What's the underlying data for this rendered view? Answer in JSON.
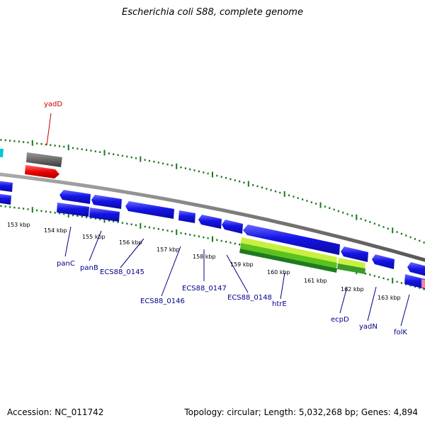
{
  "title": "Escherichia coli S88, complete genome",
  "footer": {
    "accession": "Accession: NC_011742",
    "summary": "Topology: circular; Length: 5,032,268 bp; Genes: 4,894"
  },
  "colors": {
    "background": "#ffffff",
    "backbone": "#7f7f7f",
    "tick": "#1a7a1a",
    "forward_gene": "#1010e0",
    "reverse_gene": "#1010e0",
    "gene_label": "#00008b",
    "highlight_gene": "#e00000",
    "highlight_label": "#cc0000",
    "gray_feature": "#666666",
    "green_feature": "#7fd43a",
    "cyan_feature": "#00c8d8",
    "pink_feature": "#ff80a0"
  },
  "kbp_labels": [
    "153 kbp",
    "154 kbp",
    "155 kbp",
    "156 kbp",
    "157 kbp",
    "158 kbp",
    "159 kbp",
    "160 kbp",
    "161 kbp",
    "162 kbp",
    "163 kbp"
  ],
  "gene_labels": [
    {
      "id": "yadD",
      "text": "yadD",
      "highlight": true
    },
    {
      "id": "panC",
      "text": "panC"
    },
    {
      "id": "panB",
      "text": "panB"
    },
    {
      "id": "ECS88_0145",
      "text": "ECS88_0145"
    },
    {
      "id": "ECS88_0146",
      "text": "ECS88_0146"
    },
    {
      "id": "ECS88_0147",
      "text": "ECS88_0147"
    },
    {
      "id": "ECS88_0148",
      "text": "ECS88_0148"
    },
    {
      "id": "htrE",
      "text": "htrE"
    },
    {
      "id": "ecpD",
      "text": "ecpD"
    },
    {
      "id": "yadN",
      "text": "yadN"
    },
    {
      "id": "folK",
      "text": "folK"
    }
  ]
}
